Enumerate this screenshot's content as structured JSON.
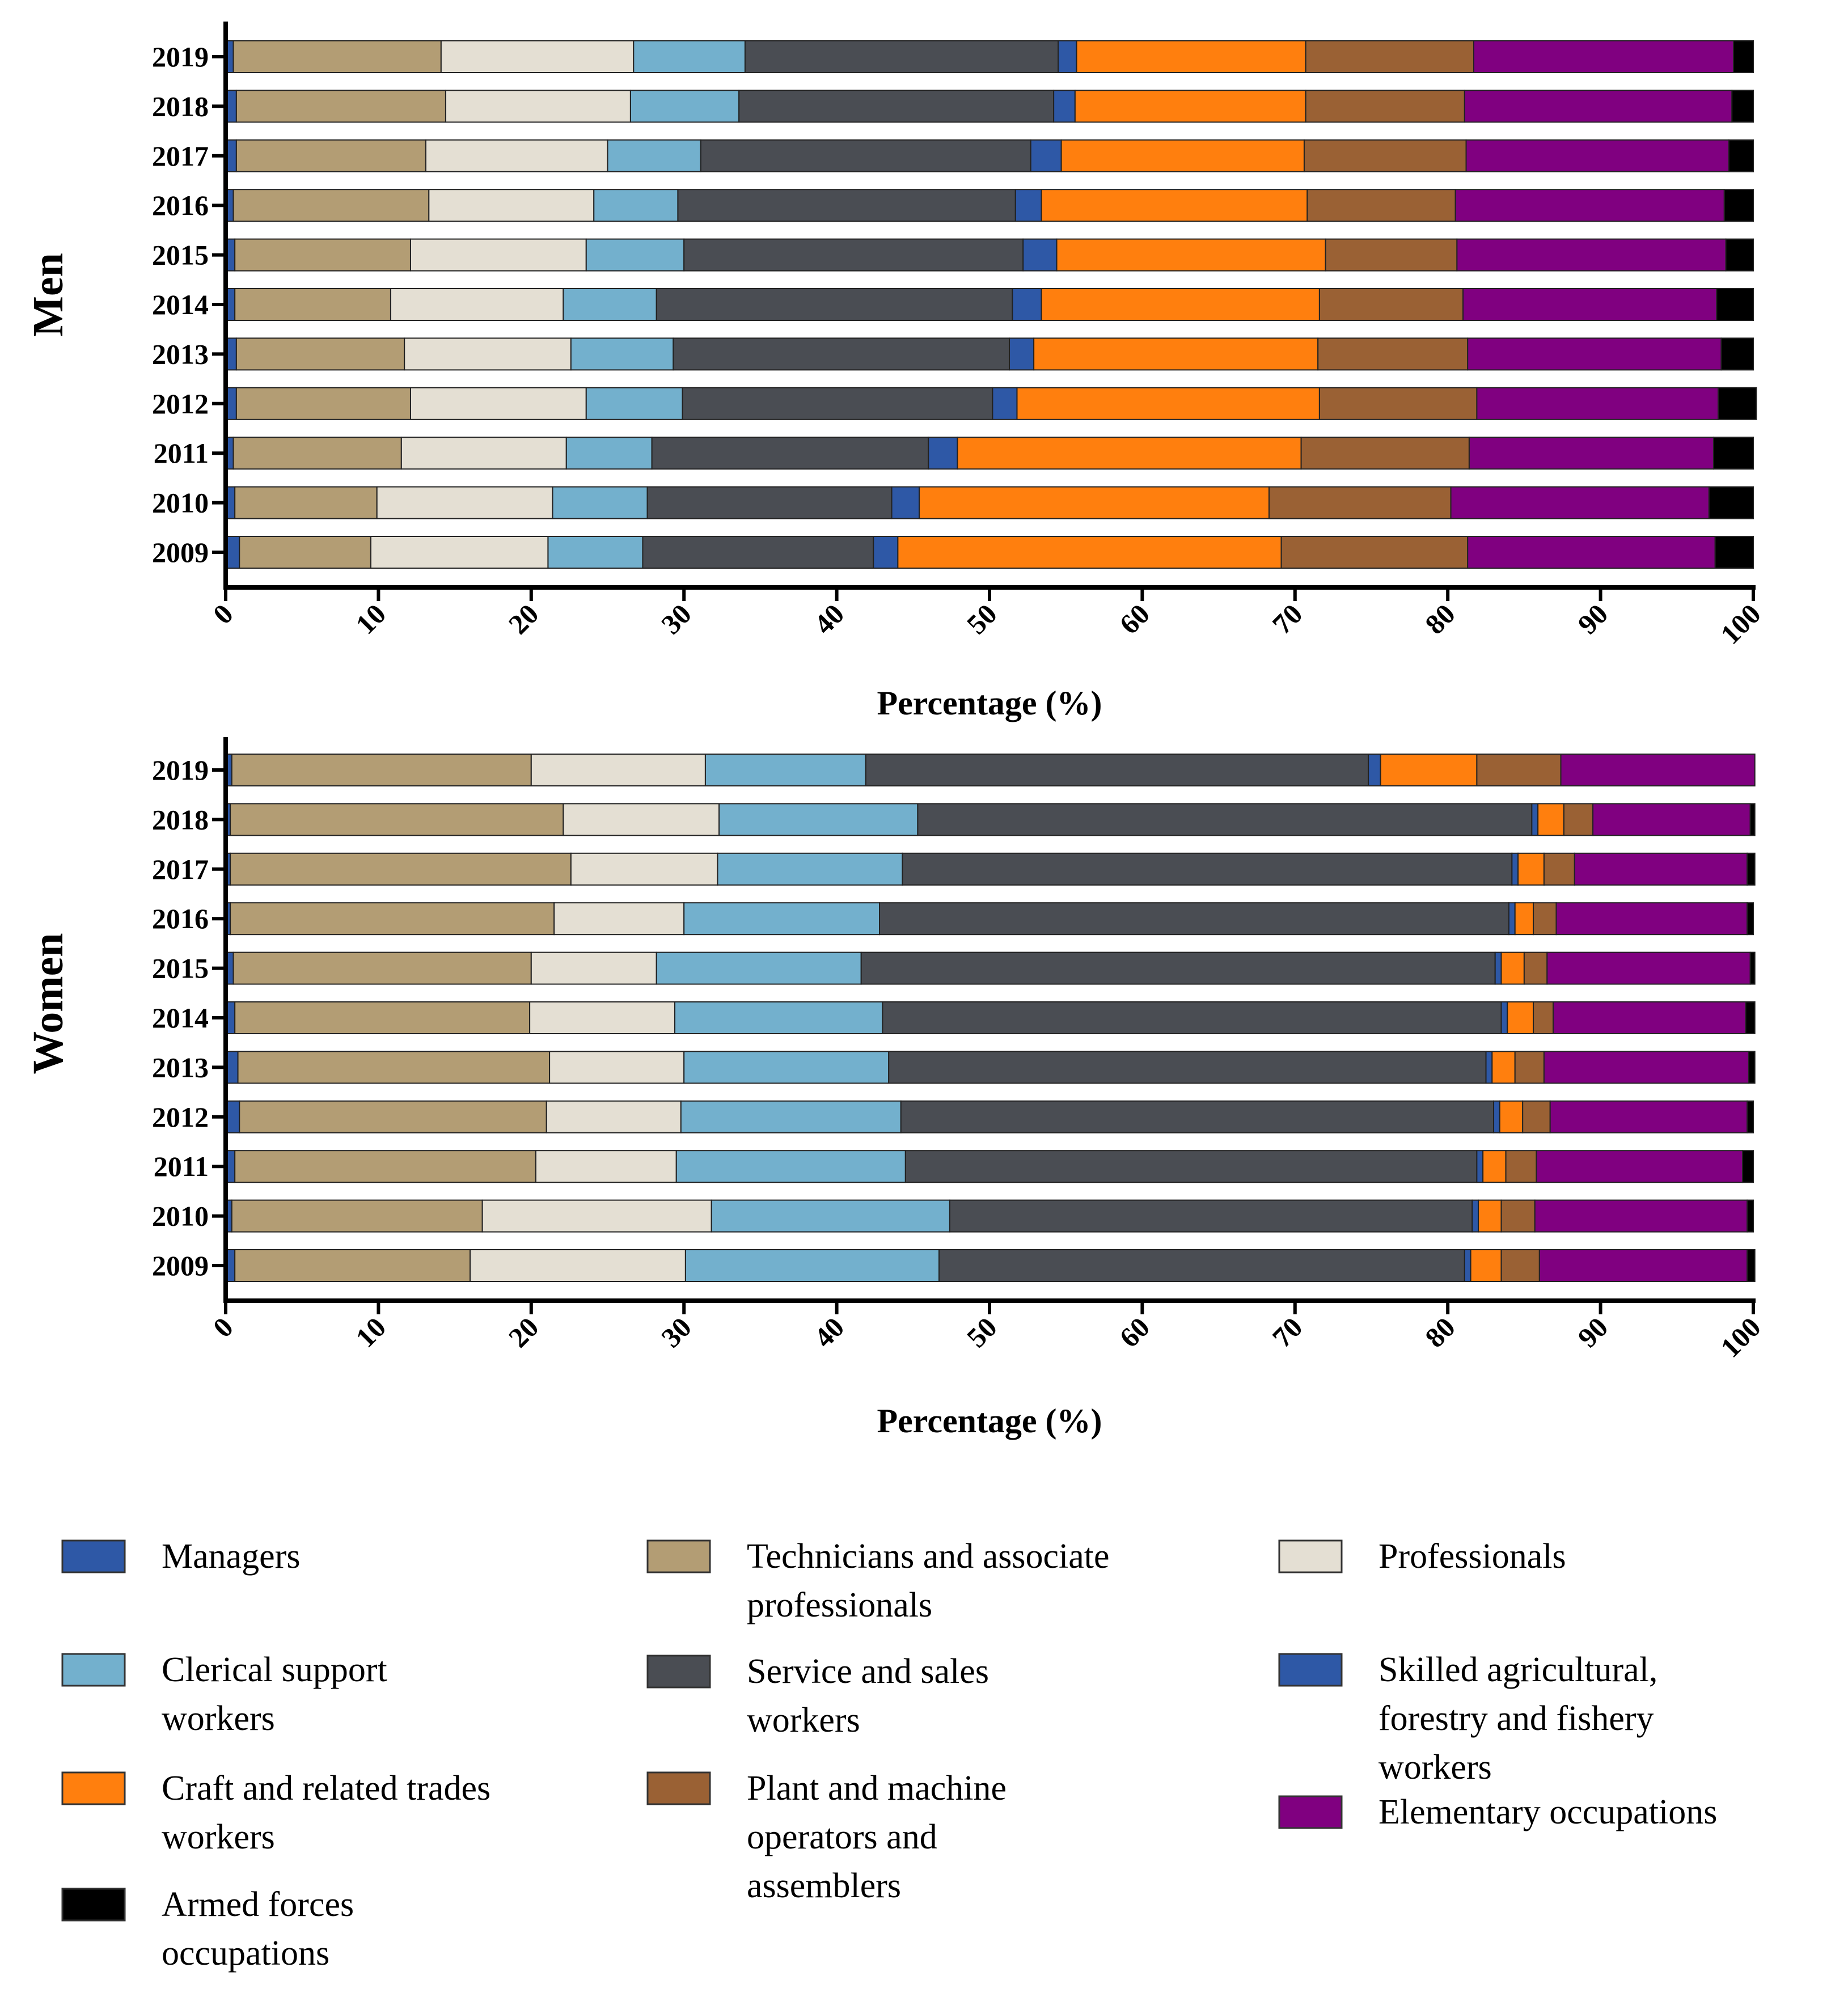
{
  "chart_data": {
    "type": "bar",
    "orientation": "horizontal",
    "stacked": true,
    "xlabel": "Percentage (%)",
    "xlim": [
      0,
      100
    ],
    "xticks": [
      "0",
      "10",
      "20",
      "30",
      "40",
      "50",
      "60",
      "70",
      "80",
      "90",
      "100"
    ],
    "categories": [
      "Managers",
      "Technicians and associate professionals",
      "Professionals",
      "Clerical support workers",
      "Service and sales workers",
      "Skilled agricultural, forestry and fishery workers",
      "Craft and related trades workers",
      "Plant and machine operators and assemblers",
      "Elementary occupations",
      "Armed forces occupations"
    ],
    "colors": [
      "#2e58a6",
      "#b39d74",
      "#e4dfd3",
      "#73b0cd",
      "#4a4d53",
      "#2e58a6",
      "#ff7f0e",
      "#9a6134",
      "#800080",
      "#000000"
    ],
    "legend": {
      "placement": "bottom",
      "items": [
        {
          "lines": [
            "Managers"
          ],
          "color": "#2e58a6"
        },
        {
          "lines": [
            "Technicians and associate",
            "professionals"
          ],
          "color": "#b39d74"
        },
        {
          "lines": [
            "Professionals"
          ],
          "color": "#e4dfd3"
        },
        {
          "lines": [
            "Clerical support",
            "workers"
          ],
          "color": "#73b0cd"
        },
        {
          "lines": [
            "Service and sales",
            "workers"
          ],
          "color": "#4a4d53"
        },
        {
          "lines": [
            "Skilled agricultural,",
            "forestry and fishery",
            "workers"
          ],
          "color": "#2e58a6"
        },
        {
          "lines": [
            "Craft and related trades",
            "workers"
          ],
          "color": "#ff7f0e"
        },
        {
          "lines": [
            "Plant and machine",
            "operators and",
            "assemblers"
          ],
          "color": "#9a6134"
        },
        {
          "lines": [
            "Elementary occupations"
          ],
          "color": "#800080"
        },
        {
          "lines": [
            "Armed forces",
            "occupations"
          ],
          "color": "#000000"
        }
      ]
    },
    "panels": [
      {
        "title": "Men",
        "years": [
          "2019",
          "2018",
          "2017",
          "2016",
          "2015",
          "2014",
          "2013",
          "2012",
          "2011",
          "2010",
          "2009"
        ],
        "series": [
          {
            "name": "Managers",
            "values": [
              0.5,
              0.7,
              0.7,
              0.5,
              0.6,
              0.6,
              0.7,
              0.7,
              0.5,
              0.6,
              0.9
            ]
          },
          {
            "name": "Technicians and associate professionals",
            "values": [
              13.6,
              13.7,
              12.4,
              12.8,
              11.5,
              10.2,
              11.0,
              11.4,
              11.0,
              9.3,
              8.6
            ]
          },
          {
            "name": "Professionals",
            "values": [
              12.6,
              12.1,
              11.9,
              10.8,
              11.5,
              11.3,
              10.9,
              11.5,
              10.8,
              11.5,
              11.6
            ]
          },
          {
            "name": "Clerical support workers",
            "values": [
              7.3,
              7.1,
              6.1,
              5.5,
              6.4,
              6.1,
              6.7,
              6.3,
              5.6,
              6.2,
              6.2
            ]
          },
          {
            "name": "Service and sales workers",
            "values": [
              20.5,
              20.6,
              21.6,
              22.1,
              22.2,
              23.3,
              22.0,
              20.3,
              18.1,
              16.0,
              15.1
            ]
          },
          {
            "name": "Skilled agricultural, forestry and fishery workers",
            "values": [
              1.2,
              1.4,
              2.0,
              1.7,
              2.2,
              1.9,
              1.6,
              1.6,
              1.9,
              1.8,
              1.6
            ]
          },
          {
            "name": "Craft and related trades workers",
            "values": [
              15.0,
              15.1,
              15.9,
              17.4,
              17.6,
              18.2,
              18.6,
              19.8,
              22.5,
              22.9,
              25.1
            ]
          },
          {
            "name": "Plant and machine operators and assemblers",
            "values": [
              11.0,
              10.4,
              10.6,
              9.7,
              8.6,
              9.4,
              9.8,
              10.3,
              11.0,
              11.9,
              12.2
            ]
          },
          {
            "name": "Elementary occupations",
            "values": [
              17.0,
              17.5,
              17.2,
              17.6,
              17.6,
              16.6,
              16.6,
              15.8,
              16.0,
              16.9,
              16.2
            ]
          },
          {
            "name": "Armed forces occupations",
            "values": [
              1.3,
              1.4,
              1.6,
              1.9,
              1.8,
              2.4,
              2.1,
              2.5,
              2.6,
              2.9,
              2.5
            ]
          }
        ]
      },
      {
        "title": "Women",
        "years": [
          "2019",
          "2018",
          "2017",
          "2016",
          "2015",
          "2014",
          "2013",
          "2012",
          "2011",
          "2010",
          "2009"
        ],
        "series": [
          {
            "name": "Managers",
            "values": [
              0.4,
              0.3,
              0.3,
              0.3,
              0.5,
              0.6,
              0.8,
              0.9,
              0.6,
              0.4,
              0.6
            ]
          },
          {
            "name": "Technicians and associate professionals",
            "values": [
              19.6,
              21.8,
              22.3,
              21.2,
              19.5,
              19.3,
              20.4,
              20.1,
              19.7,
              16.4,
              15.4
            ]
          },
          {
            "name": "Professionals",
            "values": [
              11.4,
              10.2,
              9.6,
              8.5,
              8.2,
              9.5,
              8.8,
              8.8,
              9.2,
              15.0,
              14.1
            ]
          },
          {
            "name": "Clerical support workers",
            "values": [
              10.5,
              13.0,
              12.1,
              12.8,
              13.4,
              13.6,
              13.4,
              14.4,
              15.0,
              15.6,
              16.6
            ]
          },
          {
            "name": "Service and sales workers",
            "values": [
              32.9,
              40.2,
              39.9,
              41.2,
              41.5,
              40.5,
              39.1,
              38.8,
              37.4,
              34.2,
              34.4
            ]
          },
          {
            "name": "Skilled agricultural, forestry and fishery workers",
            "values": [
              0.8,
              0.4,
              0.4,
              0.4,
              0.4,
              0.4,
              0.4,
              0.4,
              0.4,
              0.4,
              0.4
            ]
          },
          {
            "name": "Craft and related trades workers",
            "values": [
              6.3,
              1.7,
              1.7,
              1.2,
              1.5,
              1.7,
              1.5,
              1.5,
              1.5,
              1.5,
              2.0
            ]
          },
          {
            "name": "Plant and machine operators and assemblers",
            "values": [
              5.5,
              1.9,
              2.0,
              1.5,
              1.5,
              1.3,
              1.9,
              1.8,
              2.0,
              2.2,
              2.5
            ]
          },
          {
            "name": "Elementary occupations",
            "values": [
              12.7,
              10.3,
              11.3,
              12.5,
              13.3,
              12.6,
              13.4,
              12.9,
              13.5,
              13.9,
              13.6
            ]
          },
          {
            "name": "Armed forces occupations",
            "values": [
              0.0,
              0.3,
              0.5,
              0.4,
              0.3,
              0.6,
              0.4,
              0.4,
              0.7,
              0.4,
              0.5
            ]
          }
        ]
      }
    ]
  }
}
